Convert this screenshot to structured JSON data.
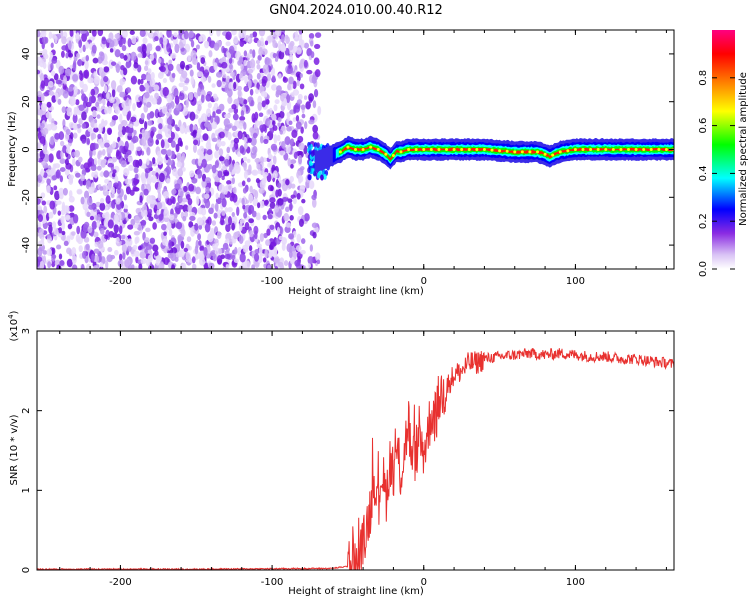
{
  "title": "GN04.2024.010.00.40.R12",
  "chart_data": [
    {
      "type": "heatmap",
      "xlabel": "Height of straight line (km)",
      "ylabel": "Frequency (Hz)",
      "xlim": [
        -255,
        165
      ],
      "ylim": [
        -50,
        50
      ],
      "xticks": [
        -200,
        -100,
        0,
        100
      ],
      "yticks": [
        -40,
        -20,
        0,
        20,
        40
      ],
      "noise_region_x": [
        -255,
        -68
      ],
      "ridge": {
        "x": [
          -70,
          -62,
          -55,
          -50,
          -45,
          -40,
          -35,
          -30,
          -25,
          -22,
          -18,
          -15,
          -10,
          -5,
          0,
          10,
          20,
          40,
          60,
          75,
          80,
          83,
          86,
          90,
          100,
          120,
          140,
          160,
          165
        ],
        "y": [
          -5,
          -3,
          -1,
          1,
          0,
          0,
          1,
          0,
          -2,
          -4,
          -1,
          -1,
          0,
          0,
          0,
          0,
          0,
          0,
          -1,
          -1,
          -2,
          -3,
          -2,
          -1,
          0,
          0,
          0,
          0,
          0
        ]
      },
      "colorbar": {
        "label": "Normalized spectral amplitude",
        "range": [
          0,
          1
        ],
        "ticks": [
          "0.0",
          "0.2",
          "0.4",
          "0.6",
          "0.8"
        ],
        "colors": [
          "#ffffff",
          "#8a2be2",
          "#0000ff",
          "#00ffff",
          "#00ff00",
          "#ffff00",
          "#ff8000",
          "#ff0000",
          "#ff0080"
        ]
      }
    },
    {
      "type": "line",
      "xlabel": "Height of straight line (km)",
      "ylabel": "SNR (10 * v/v)",
      "multiplier_label": "(x10",
      "multiplier_exp": "4",
      "xlim": [
        -255,
        165
      ],
      "ylim": [
        0,
        3
      ],
      "xticks": [
        -200,
        -100,
        0,
        100
      ],
      "yticks": [
        0,
        1,
        2,
        3
      ],
      "color": "#e8312f",
      "series": [
        {
          "x": [
            -255,
            -150,
            -60,
            -45,
            -40,
            -35,
            -32,
            -30,
            -28,
            -25,
            -22,
            -20,
            -18,
            -15,
            -12,
            -10,
            -8,
            -5,
            -3,
            0,
            3,
            5,
            8,
            10,
            15,
            20,
            25,
            30,
            35,
            40,
            50,
            60,
            70,
            80,
            90,
            100,
            110,
            120,
            130,
            140,
            150,
            160,
            165
          ],
          "y": [
            0.01,
            0.01,
            0.02,
            0.06,
            0.3,
            0.8,
            1.2,
            0.7,
            1.3,
            0.9,
            1.4,
            1.1,
            1.5,
            1.2,
            1.6,
            1.9,
            1.3,
            1.5,
            1.6,
            1.5,
            1.75,
            2.0,
            1.9,
            2.15,
            2.3,
            2.45,
            2.5,
            2.6,
            2.6,
            2.65,
            2.68,
            2.7,
            2.72,
            2.7,
            2.72,
            2.7,
            2.68,
            2.68,
            2.65,
            2.65,
            2.62,
            2.6,
            2.58
          ]
        }
      ]
    }
  ]
}
